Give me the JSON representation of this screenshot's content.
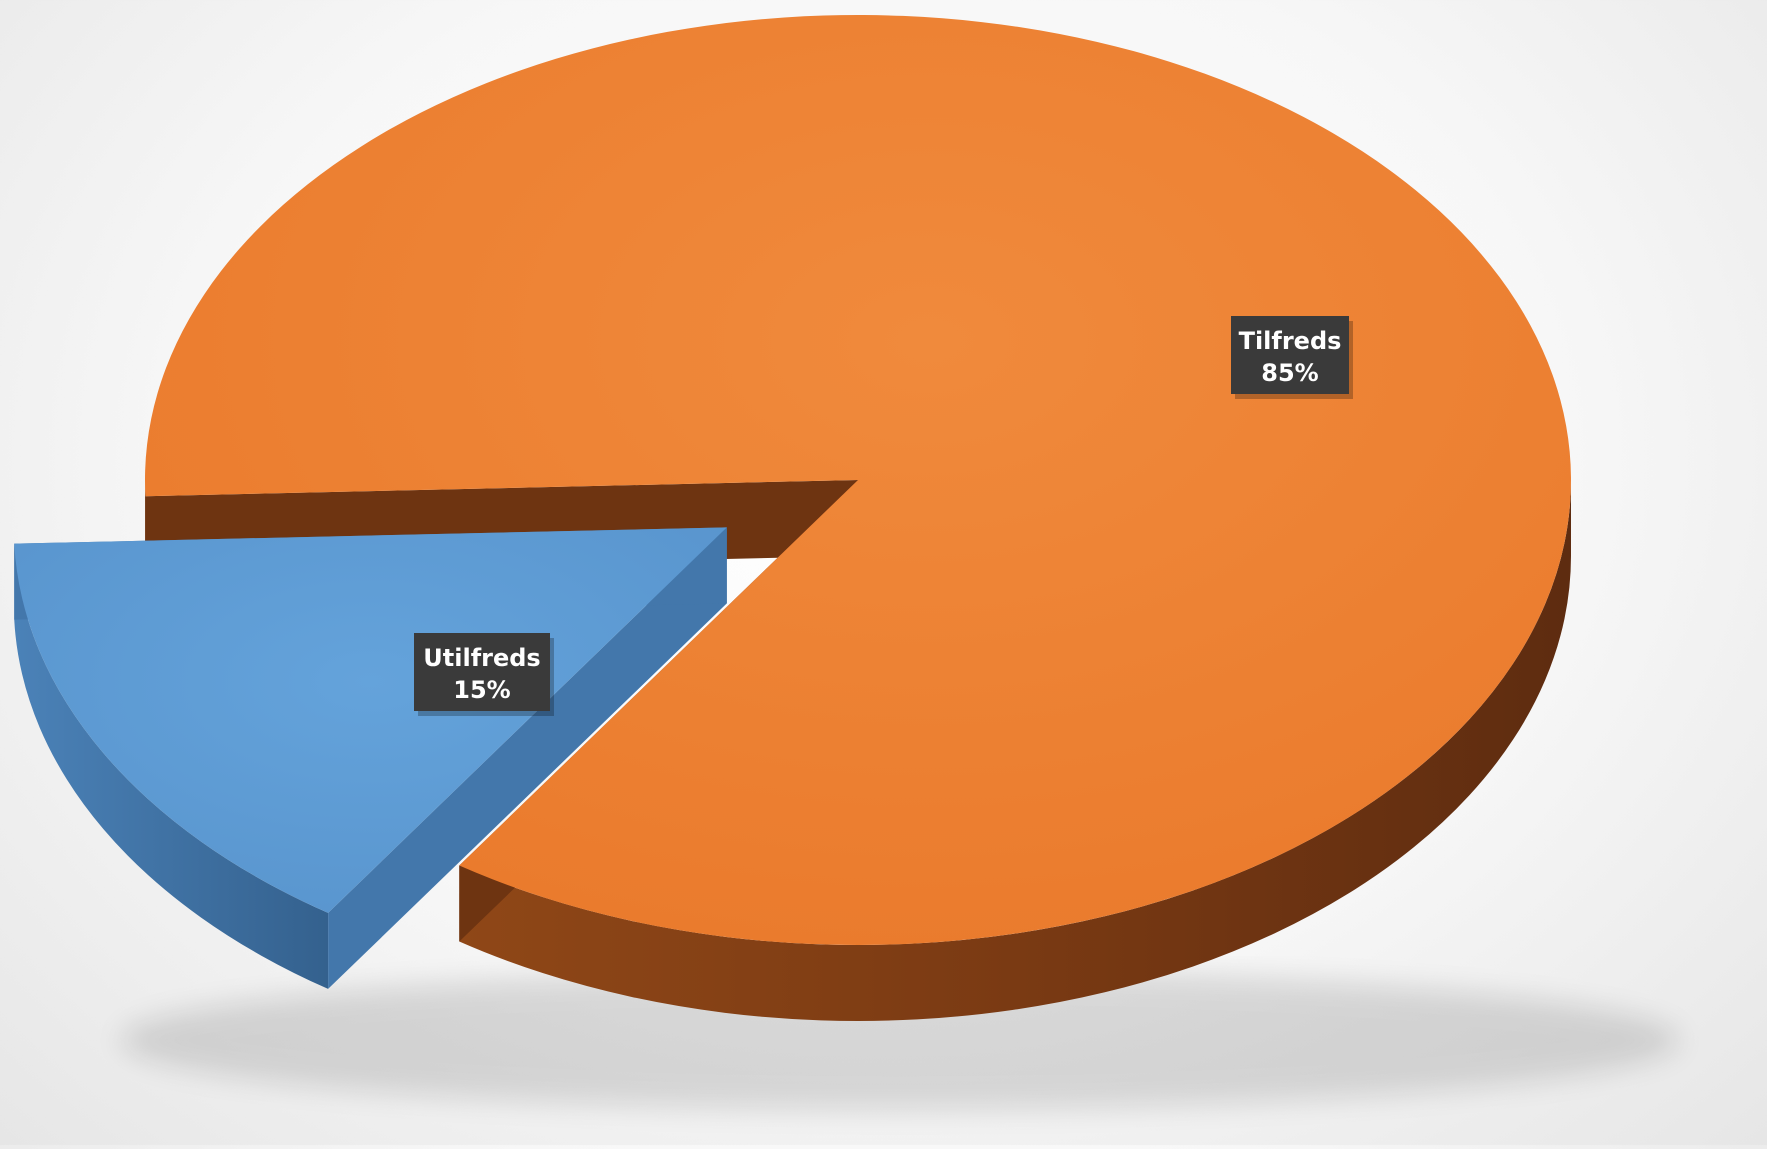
{
  "chart_data": {
    "type": "pie",
    "style": "3d-exploded",
    "slices": [
      {
        "label": "Tilfreds",
        "value": 85,
        "value_label": "85%",
        "color": "#ED7D31",
        "side_color": "#8A4218"
      },
      {
        "label": "Utilfreds",
        "value": 15,
        "value_label": "15%",
        "color": "#5B9BD5",
        "side_color": "#3C6C99"
      }
    ],
    "label_box_color": "#3A3A3A",
    "label_text_color": "#FFFFFF"
  }
}
